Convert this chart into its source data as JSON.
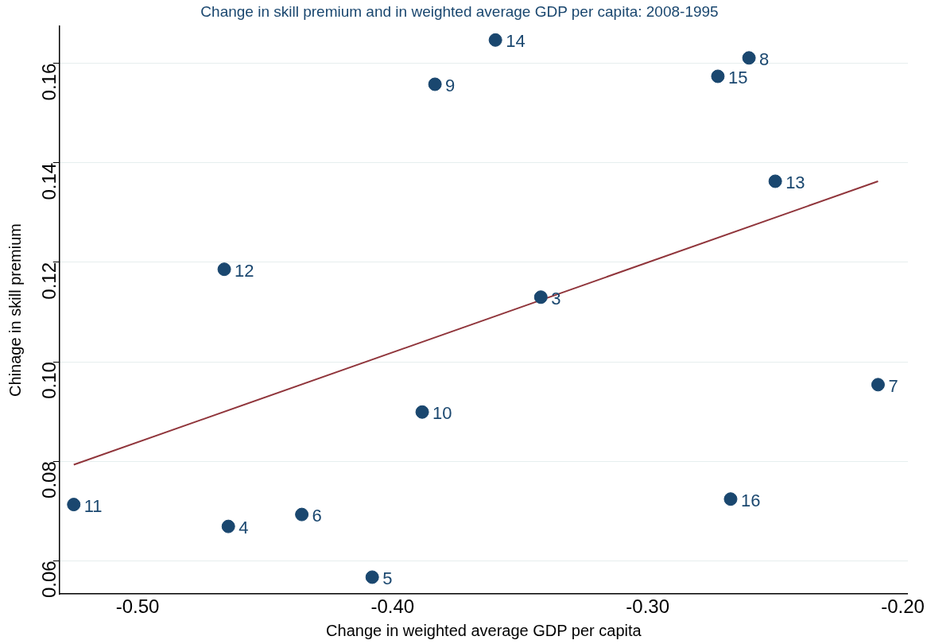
{
  "chart_data": {
    "type": "scatter",
    "title": "Change in skill premium and in weighted average GDP per capita: 2008-1995",
    "xlabel": "Change in weighted average GDP per capita",
    "ylabel": "Chinage in skill premium",
    "x": [
      -0.525,
      -0.4644,
      -0.4356,
      -0.408,
      -0.3884,
      -0.466,
      -0.3834,
      -0.3597,
      -0.3419,
      -0.2725,
      -0.2603,
      -0.25,
      -0.2675,
      -0.2097
    ],
    "series": [
      {
        "color": "#1a476f",
        "values": [
          0.0713,
          0.0669,
          0.0693,
          0.0567,
          0.0899,
          0.1186,
          0.1558,
          0.1647,
          0.113,
          0.1574,
          0.1611,
          0.1363,
          0.0724,
          0.0954
        ]
      },
      {
        "type": "line",
        "marker": "none",
        "color": "#90353b",
        "x": [
          -0.525,
          -0.2097
        ],
        "values": [
          0.0793,
          0.1363
        ]
      }
    ],
    "annotations": [
      {
        "text": "11",
        "x": -0.525,
        "y": 0.0713
      },
      {
        "text": "4",
        "x": -0.4644,
        "y": 0.0669
      },
      {
        "text": "6",
        "x": -0.4356,
        "y": 0.0693
      },
      {
        "text": "5",
        "x": -0.408,
        "y": 0.0567
      },
      {
        "text": "10",
        "x": -0.3884,
        "y": 0.0899
      },
      {
        "text": "12",
        "x": -0.466,
        "y": 0.1186
      },
      {
        "text": "9",
        "x": -0.3834,
        "y": 0.1558
      },
      {
        "text": "14",
        "x": -0.3597,
        "y": 0.1647
      },
      {
        "text": "3",
        "x": -0.3419,
        "y": 0.113
      },
      {
        "text": "15",
        "x": -0.2725,
        "y": 0.1574
      },
      {
        "text": "8",
        "x": -0.2603,
        "y": 0.1611
      },
      {
        "text": "13",
        "x": -0.25,
        "y": 0.1363
      },
      {
        "text": "16",
        "x": -0.2675,
        "y": 0.0724
      },
      {
        "text": "7",
        "x": -0.2097,
        "y": 0.0954
      }
    ],
    "xlim": [
      -0.5306,
      -0.198
    ],
    "xticks": [
      {
        "value": -0.5,
        "label": "-0.50"
      },
      {
        "value": -0.4,
        "label": "-0.40"
      },
      {
        "value": -0.3,
        "label": "-0.30"
      },
      {
        "value": -0.2,
        "label": "-0.20"
      }
    ],
    "ylim": [
      0.0533,
      0.1675
    ],
    "yticks": [
      {
        "value": 0.06,
        "label": "0.06"
      },
      {
        "value": 0.08,
        "label": "0.08"
      },
      {
        "value": 0.1,
        "label": "0.10"
      },
      {
        "value": 0.12,
        "label": "0.12"
      },
      {
        "value": 0.14,
        "label": "0.14"
      },
      {
        "value": 0.16,
        "label": "0.16"
      }
    ],
    "grid": "y",
    "legend": false,
    "marker": "circle"
  }
}
